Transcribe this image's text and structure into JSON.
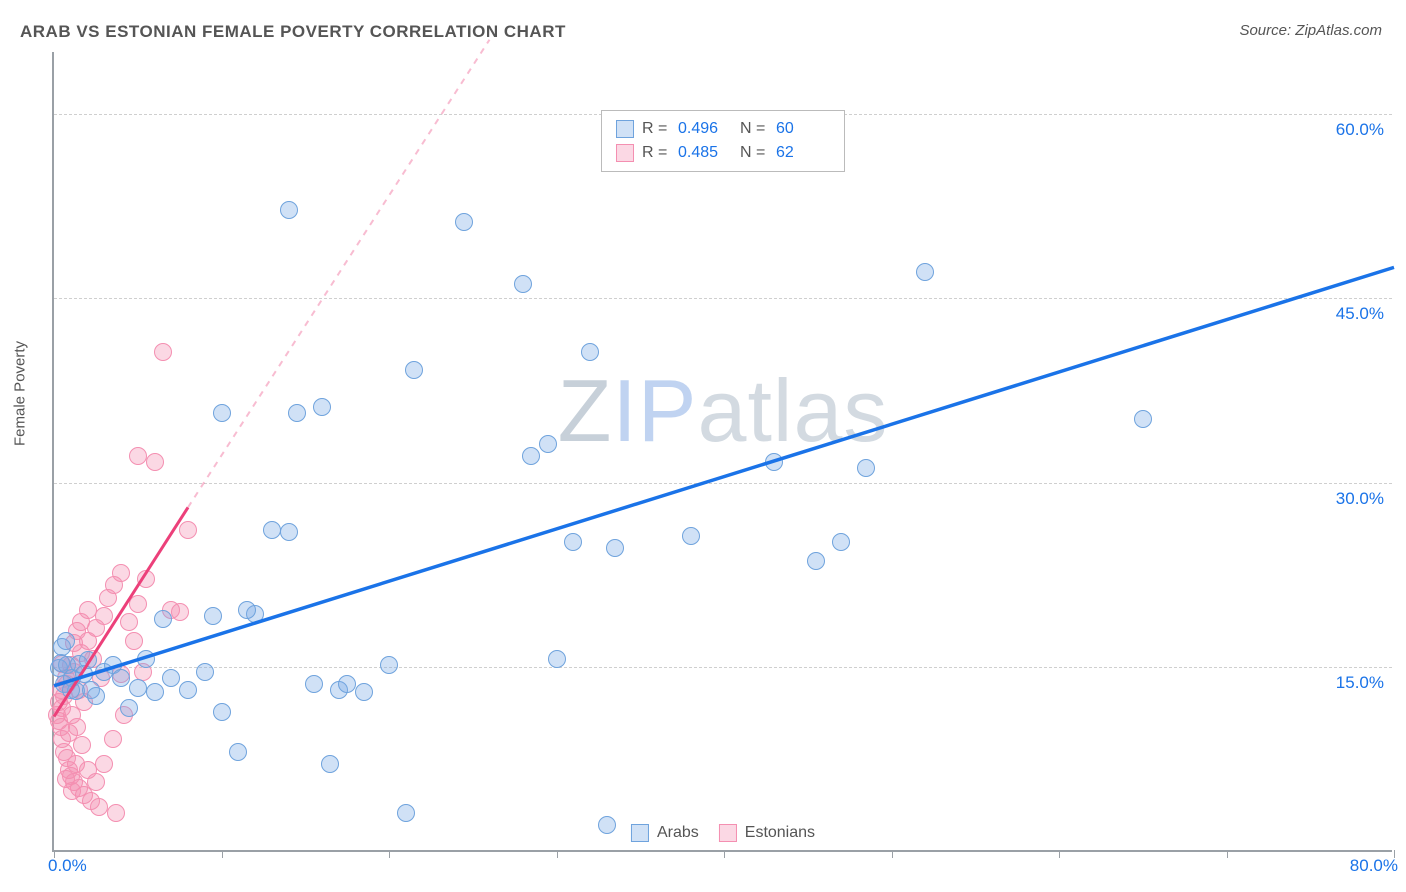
{
  "title": "ARAB VS ESTONIAN FEMALE POVERTY CORRELATION CHART",
  "source": "Source: ZipAtlas.com",
  "ylabel": "Female Poverty",
  "watermark": {
    "part1": "Z",
    "part2": "IP",
    "part3": "atlas"
  },
  "chart": {
    "type": "scatter",
    "xlim": [
      0,
      80
    ],
    "ylim": [
      0,
      65
    ],
    "x_axis_label_min": "0.0%",
    "x_axis_label_max": "80.0%",
    "y_ticks": [
      15,
      30,
      45,
      60
    ],
    "y_tick_labels": [
      "15.0%",
      "30.0%",
      "45.0%",
      "60.0%"
    ],
    "x_tick_positions": [
      0,
      10,
      20,
      30,
      40,
      50,
      60,
      70,
      80
    ],
    "grid_color": "#cfcfcf",
    "axis_color": "#9aa0a6",
    "value_text_color": "#1a73e8"
  },
  "series": {
    "arabs": {
      "label": "Arabs",
      "fill": "rgba(120,170,230,0.35)",
      "stroke": "#6fa3dd",
      "trend_color": "#1a73e8",
      "trend_dash_color": "rgba(26,115,232,0.35)",
      "R": "0.496",
      "N": "60",
      "marker_r": 9,
      "trend": {
        "x1": 0,
        "y1": 13.5,
        "x2": 80,
        "y2": 47.5
      },
      "points": [
        [
          0.3,
          14.8
        ],
        [
          0.4,
          15.2
        ],
        [
          0.6,
          13.5
        ],
        [
          0.8,
          15.0
        ],
        [
          1.1,
          14.0
        ],
        [
          1.3,
          12.9
        ],
        [
          1.5,
          15.1
        ],
        [
          0.5,
          16.5
        ],
        [
          0.7,
          17.0
        ],
        [
          1.0,
          13.0
        ],
        [
          1.8,
          14.3
        ],
        [
          2.0,
          15.4
        ],
        [
          2.2,
          13.0
        ],
        [
          2.5,
          12.5
        ],
        [
          3.0,
          14.5
        ],
        [
          3.5,
          15.0
        ],
        [
          4.0,
          14.0
        ],
        [
          4.5,
          11.5
        ],
        [
          5.0,
          13.2
        ],
        [
          5.5,
          15.5
        ],
        [
          6.0,
          12.8
        ],
        [
          7.0,
          14.0
        ],
        [
          8.0,
          13.0
        ],
        [
          9.0,
          14.5
        ],
        [
          10.0,
          11.2
        ],
        [
          11.0,
          8.0
        ],
        [
          12.0,
          19.2
        ],
        [
          13.0,
          26.0
        ],
        [
          14.0,
          25.8
        ],
        [
          15.5,
          13.5
        ],
        [
          16.5,
          7.0
        ],
        [
          17.0,
          13.0
        ],
        [
          17.5,
          13.5
        ],
        [
          18.5,
          12.8
        ],
        [
          20.0,
          15.0
        ],
        [
          21.0,
          3.0
        ],
        [
          14.0,
          52.0
        ],
        [
          10.0,
          35.5
        ],
        [
          14.5,
          35.5
        ],
        [
          16.0,
          36.0
        ],
        [
          21.5,
          39.0
        ],
        [
          24.5,
          51.0
        ],
        [
          28.0,
          46.0
        ],
        [
          28.5,
          32.0
        ],
        [
          29.5,
          33.0
        ],
        [
          32.0,
          40.5
        ],
        [
          31.0,
          25.0
        ],
        [
          30.0,
          15.5
        ],
        [
          33.0,
          2.0
        ],
        [
          33.5,
          24.5
        ],
        [
          38.0,
          25.5
        ],
        [
          43.0,
          31.5
        ],
        [
          45.5,
          23.5
        ],
        [
          47.0,
          25.0
        ],
        [
          48.5,
          31.0
        ],
        [
          52.0,
          47.0
        ],
        [
          65.0,
          35.0
        ],
        [
          9.5,
          19.0
        ],
        [
          11.5,
          19.5
        ],
        [
          6.5,
          18.8
        ]
      ]
    },
    "estonians": {
      "label": "Estonians",
      "fill": "rgba(244,143,177,0.35)",
      "stroke": "#f48fb1",
      "trend_color": "#ec407a",
      "trend_dash_color": "rgba(236,64,122,0.35)",
      "R": "0.485",
      "N": "62",
      "marker_r": 9,
      "trend": {
        "x1": 0,
        "y1": 11.0,
        "x2": 8.0,
        "y2": 28.0
      },
      "trend_dash_end": {
        "x": 26.0,
        "y": 66.0
      },
      "points": [
        [
          0.2,
          11.0
        ],
        [
          0.3,
          10.5
        ],
        [
          0.3,
          12.0
        ],
        [
          0.4,
          10.0
        ],
        [
          0.4,
          13.0
        ],
        [
          0.5,
          11.5
        ],
        [
          0.5,
          9.0
        ],
        [
          0.6,
          8.0
        ],
        [
          0.6,
          12.5
        ],
        [
          0.7,
          14.0
        ],
        [
          0.8,
          7.5
        ],
        [
          0.8,
          13.5
        ],
        [
          0.9,
          9.5
        ],
        [
          1.0,
          6.0
        ],
        [
          1.0,
          15.0
        ],
        [
          1.1,
          11.0
        ],
        [
          1.2,
          5.5
        ],
        [
          1.2,
          14.5
        ],
        [
          1.3,
          7.0
        ],
        [
          1.4,
          10.0
        ],
        [
          1.5,
          5.0
        ],
        [
          1.5,
          13.0
        ],
        [
          1.6,
          16.0
        ],
        [
          1.7,
          8.5
        ],
        [
          1.8,
          4.5
        ],
        [
          1.8,
          12.0
        ],
        [
          2.0,
          6.5
        ],
        [
          2.0,
          17.0
        ],
        [
          2.2,
          4.0
        ],
        [
          2.3,
          15.5
        ],
        [
          2.5,
          5.5
        ],
        [
          2.5,
          18.0
        ],
        [
          2.7,
          3.5
        ],
        [
          2.8,
          14.0
        ],
        [
          3.0,
          7.0
        ],
        [
          3.0,
          19.0
        ],
        [
          3.2,
          20.5
        ],
        [
          3.5,
          9.0
        ],
        [
          3.6,
          21.5
        ],
        [
          3.7,
          3.0
        ],
        [
          4.0,
          22.5
        ],
        [
          4.2,
          11.0
        ],
        [
          4.5,
          18.5
        ],
        [
          4.8,
          17.0
        ],
        [
          5.0,
          20.0
        ],
        [
          5.3,
          14.5
        ],
        [
          5.5,
          22.0
        ],
        [
          1.2,
          16.8
        ],
        [
          1.4,
          17.8
        ],
        [
          1.6,
          18.5
        ],
        [
          2.0,
          19.5
        ],
        [
          0.9,
          6.5
        ],
        [
          1.1,
          4.8
        ],
        [
          0.7,
          5.8
        ],
        [
          4.0,
          14.3
        ],
        [
          6.5,
          40.5
        ],
        [
          5.0,
          32.0
        ],
        [
          6.0,
          31.5
        ],
        [
          7.0,
          19.5
        ],
        [
          7.5,
          19.3
        ],
        [
          8.0,
          26.0
        ],
        [
          0.5,
          15.1
        ]
      ]
    }
  },
  "legend_bottom": [
    {
      "key": "arabs"
    },
    {
      "key": "estonians"
    }
  ]
}
